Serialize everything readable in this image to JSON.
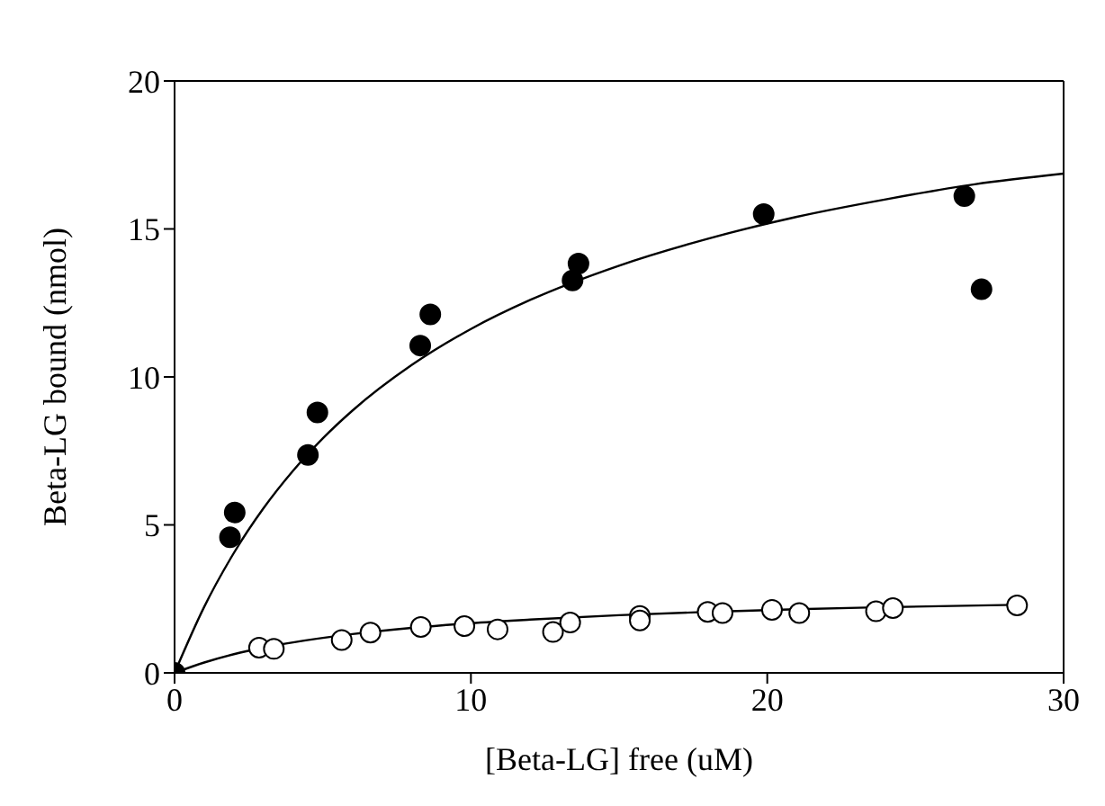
{
  "chart_data": {
    "type": "scatter",
    "xlabel": "[Beta-LG] free (uM)",
    "ylabel": "Beta-LG bound (nmol)",
    "xlim": [
      0,
      30
    ],
    "ylim": [
      0,
      20
    ],
    "xticks": [
      0,
      10,
      20,
      30
    ],
    "yticks": [
      0,
      5,
      10,
      15,
      20
    ],
    "grid": false,
    "legend": false,
    "series": [
      {
        "marker": "circle",
        "color": "#000000",
        "x": [
          0,
          1.87,
          2.03,
          4.5,
          4.82,
          8.29,
          8.63,
          13.43,
          13.63,
          19.88,
          26.65,
          27.23
        ],
        "values": [
          0,
          4.58,
          5.42,
          7.36,
          8.8,
          11.06,
          12.11,
          13.26,
          13.83,
          15.5,
          16.11,
          12.96
        ]
      },
      {
        "marker": "circle",
        "color": "#ffffff",
        "x": [
          2.85,
          3.35,
          5.64,
          6.61,
          8.31,
          9.78,
          10.9,
          12.77,
          13.35,
          15.7,
          15.7,
          17.99,
          18.49,
          20.16,
          21.08,
          23.67,
          24.24,
          28.43
        ],
        "values": [
          0.85,
          0.81,
          1.11,
          1.36,
          1.55,
          1.58,
          1.47,
          1.38,
          1.7,
          1.92,
          1.77,
          2.06,
          2.02,
          2.13,
          2.02,
          2.08,
          2.19,
          2.28
        ]
      },
      {
        "type": "line",
        "marker": "none",
        "line_style": "solid",
        "color": "#000000",
        "x": [
          0,
          1,
          2,
          3,
          4,
          5,
          6,
          8,
          10,
          12,
          15,
          18,
          21,
          24,
          27,
          30
        ],
        "values": [
          0,
          2.23,
          4.05,
          5.56,
          6.83,
          7.92,
          8.86,
          10.4,
          11.62,
          12.6,
          13.76,
          14.67,
          15.41,
          16.0,
          16.51,
          16.87
        ]
      },
      {
        "type": "line",
        "marker": "none",
        "line_style": "solid",
        "color": "#000000",
        "x": [
          0,
          1,
          2,
          3,
          4,
          6,
          8,
          10,
          12,
          15,
          18,
          21,
          24,
          28.4
        ],
        "values": [
          0,
          0.35,
          0.63,
          0.85,
          1.03,
          1.31,
          1.52,
          1.68,
          1.8,
          1.95,
          2.06,
          2.15,
          2.22,
          2.3
        ]
      }
    ]
  }
}
